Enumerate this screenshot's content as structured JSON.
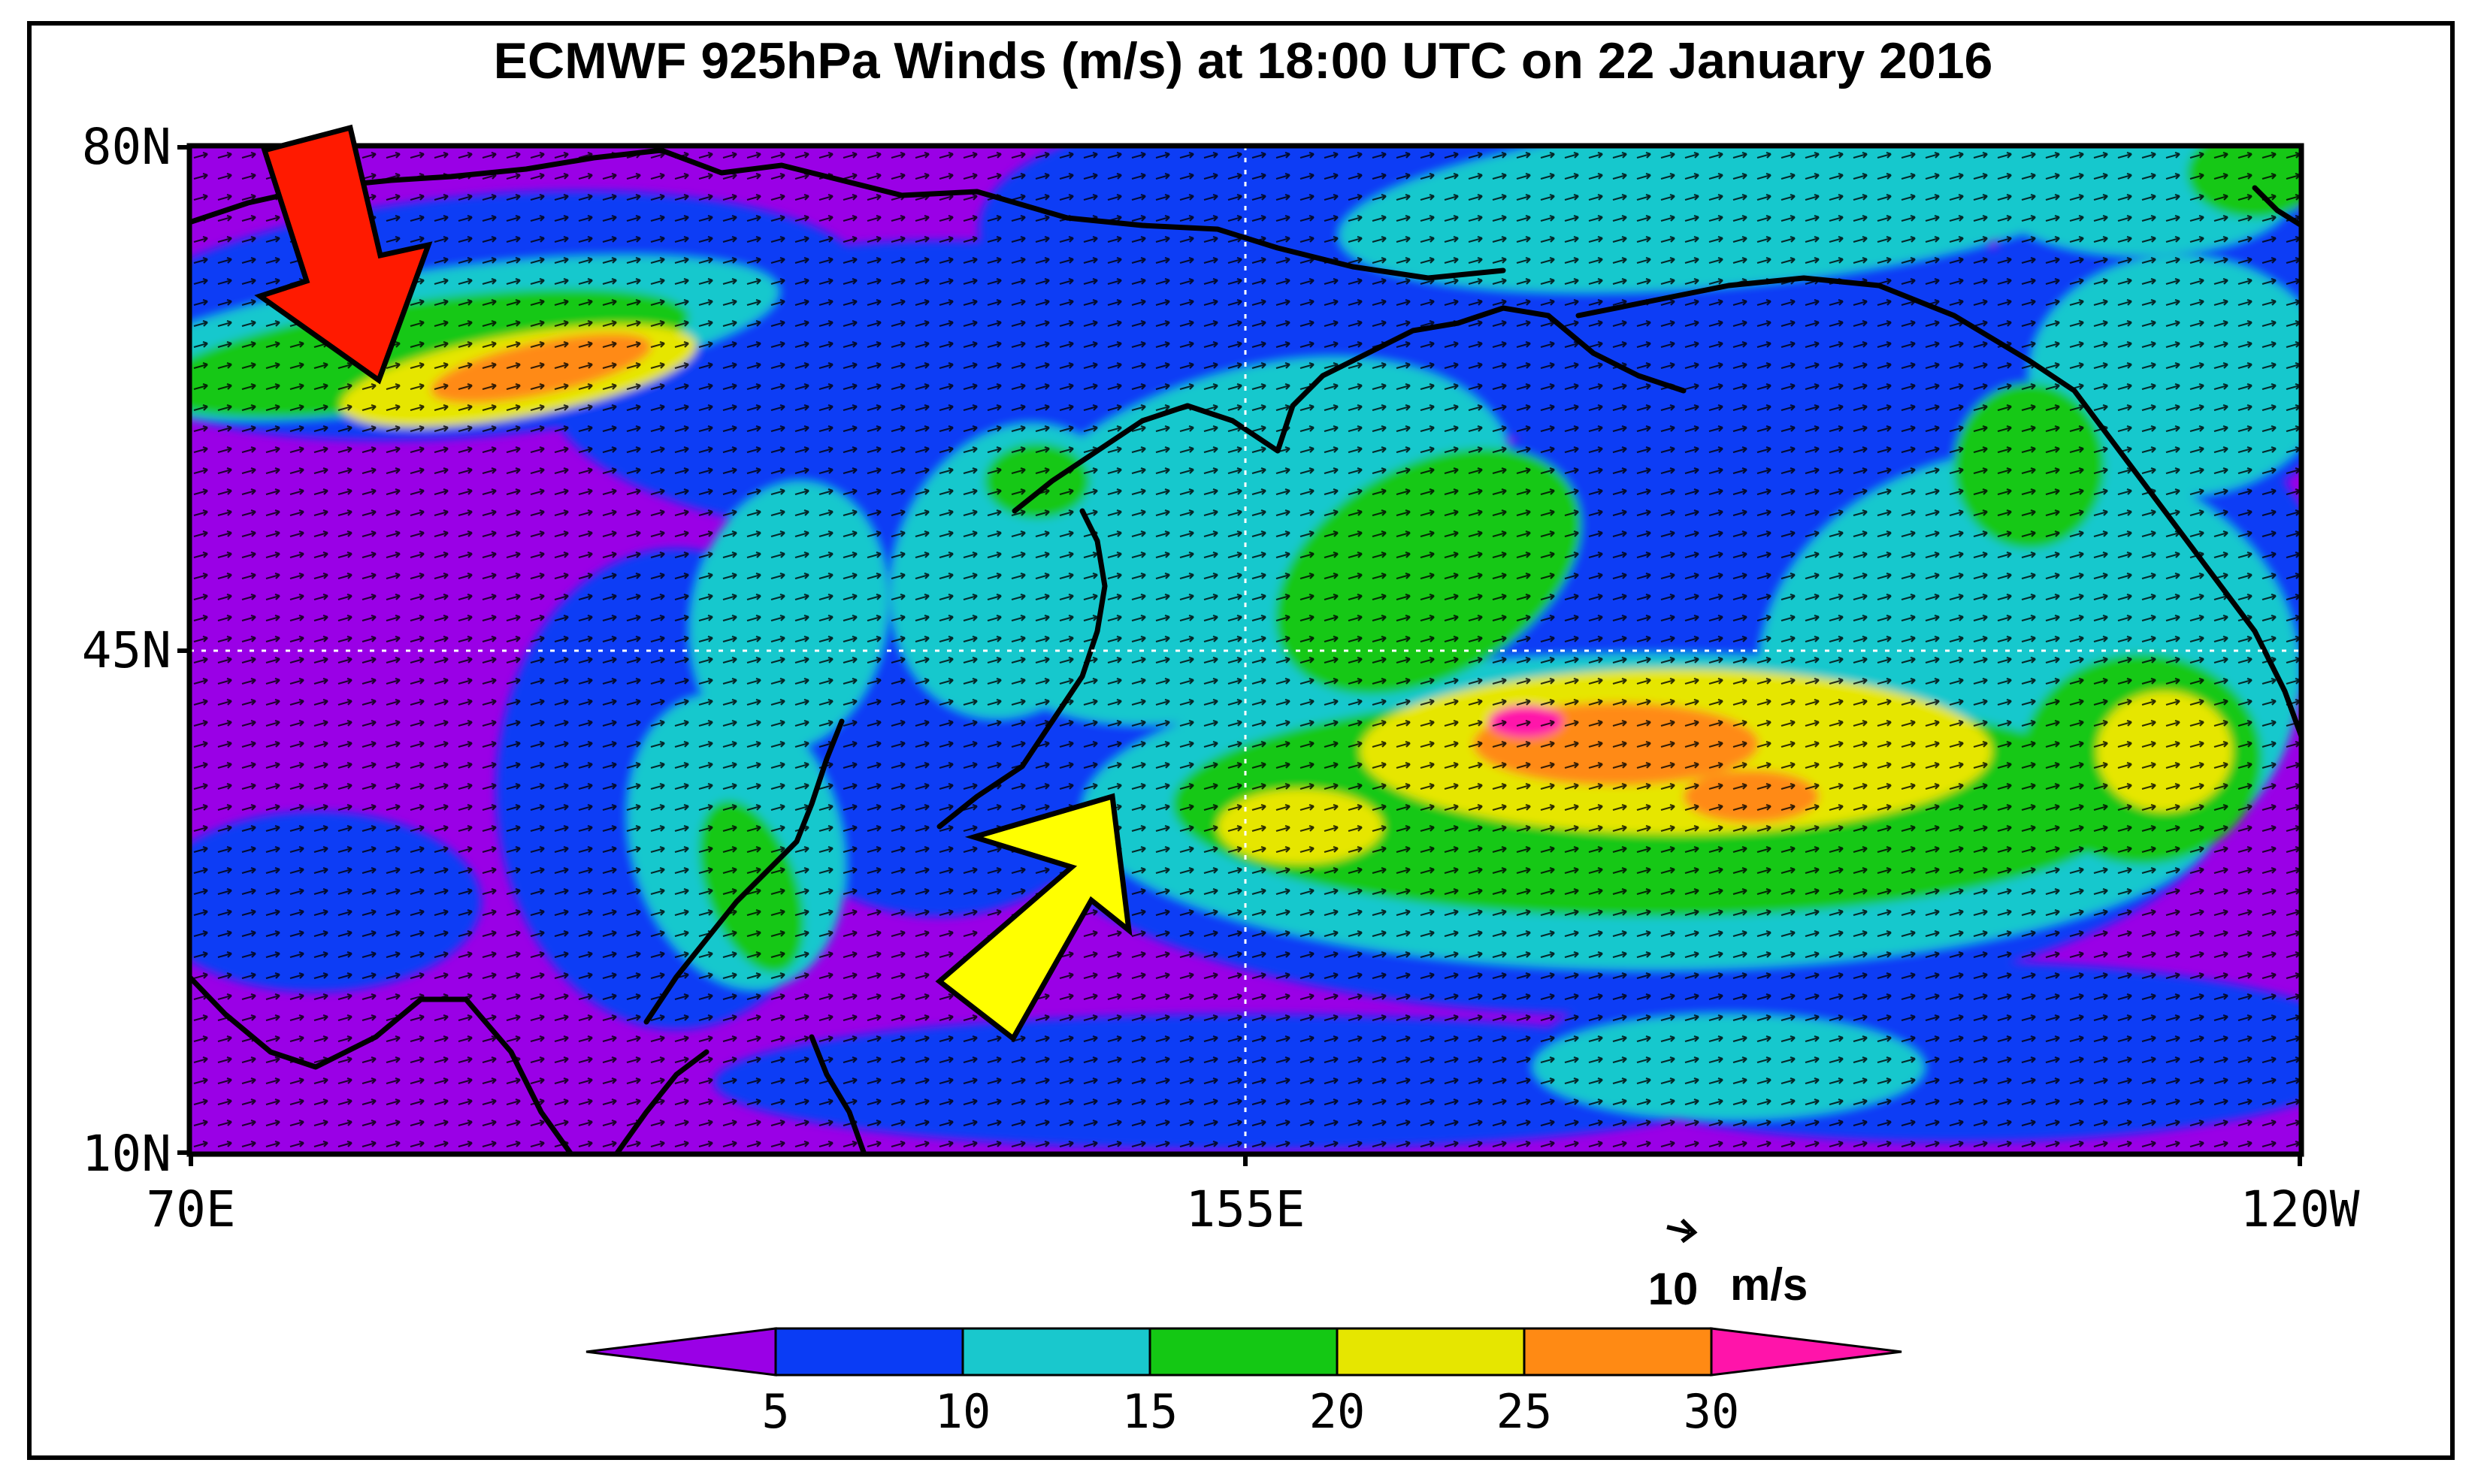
{
  "title": "ECMWF 925hPa Winds (m/s) at 18:00 UTC on 22 January 2016",
  "axes": {
    "lat_labels": [
      "80N",
      "45N",
      "10N"
    ],
    "lon_labels": [
      "70E",
      "155E",
      "120W"
    ]
  },
  "reference_vector": {
    "value": "10",
    "unit": "m/s"
  },
  "colorbar": {
    "tick_labels": [
      "5",
      "10",
      "15",
      "20",
      "25",
      "30"
    ],
    "colors": [
      "#9a00e6",
      "#0a3cf5",
      "#19c8cd",
      "#14c814",
      "#e6e600",
      "#ff8a14",
      "#ff14aa"
    ]
  },
  "annotations": {
    "arrow_colors": [
      "#ff1a00",
      "#ffff00"
    ]
  },
  "colors": {
    "magenta": "#9a00e6",
    "blue": "#0a3cf5",
    "cyan": "#19c8cd",
    "green": "#14c814",
    "yellow": "#e6e600",
    "orange": "#ff8a14",
    "pink": "#ff14aa"
  }
}
